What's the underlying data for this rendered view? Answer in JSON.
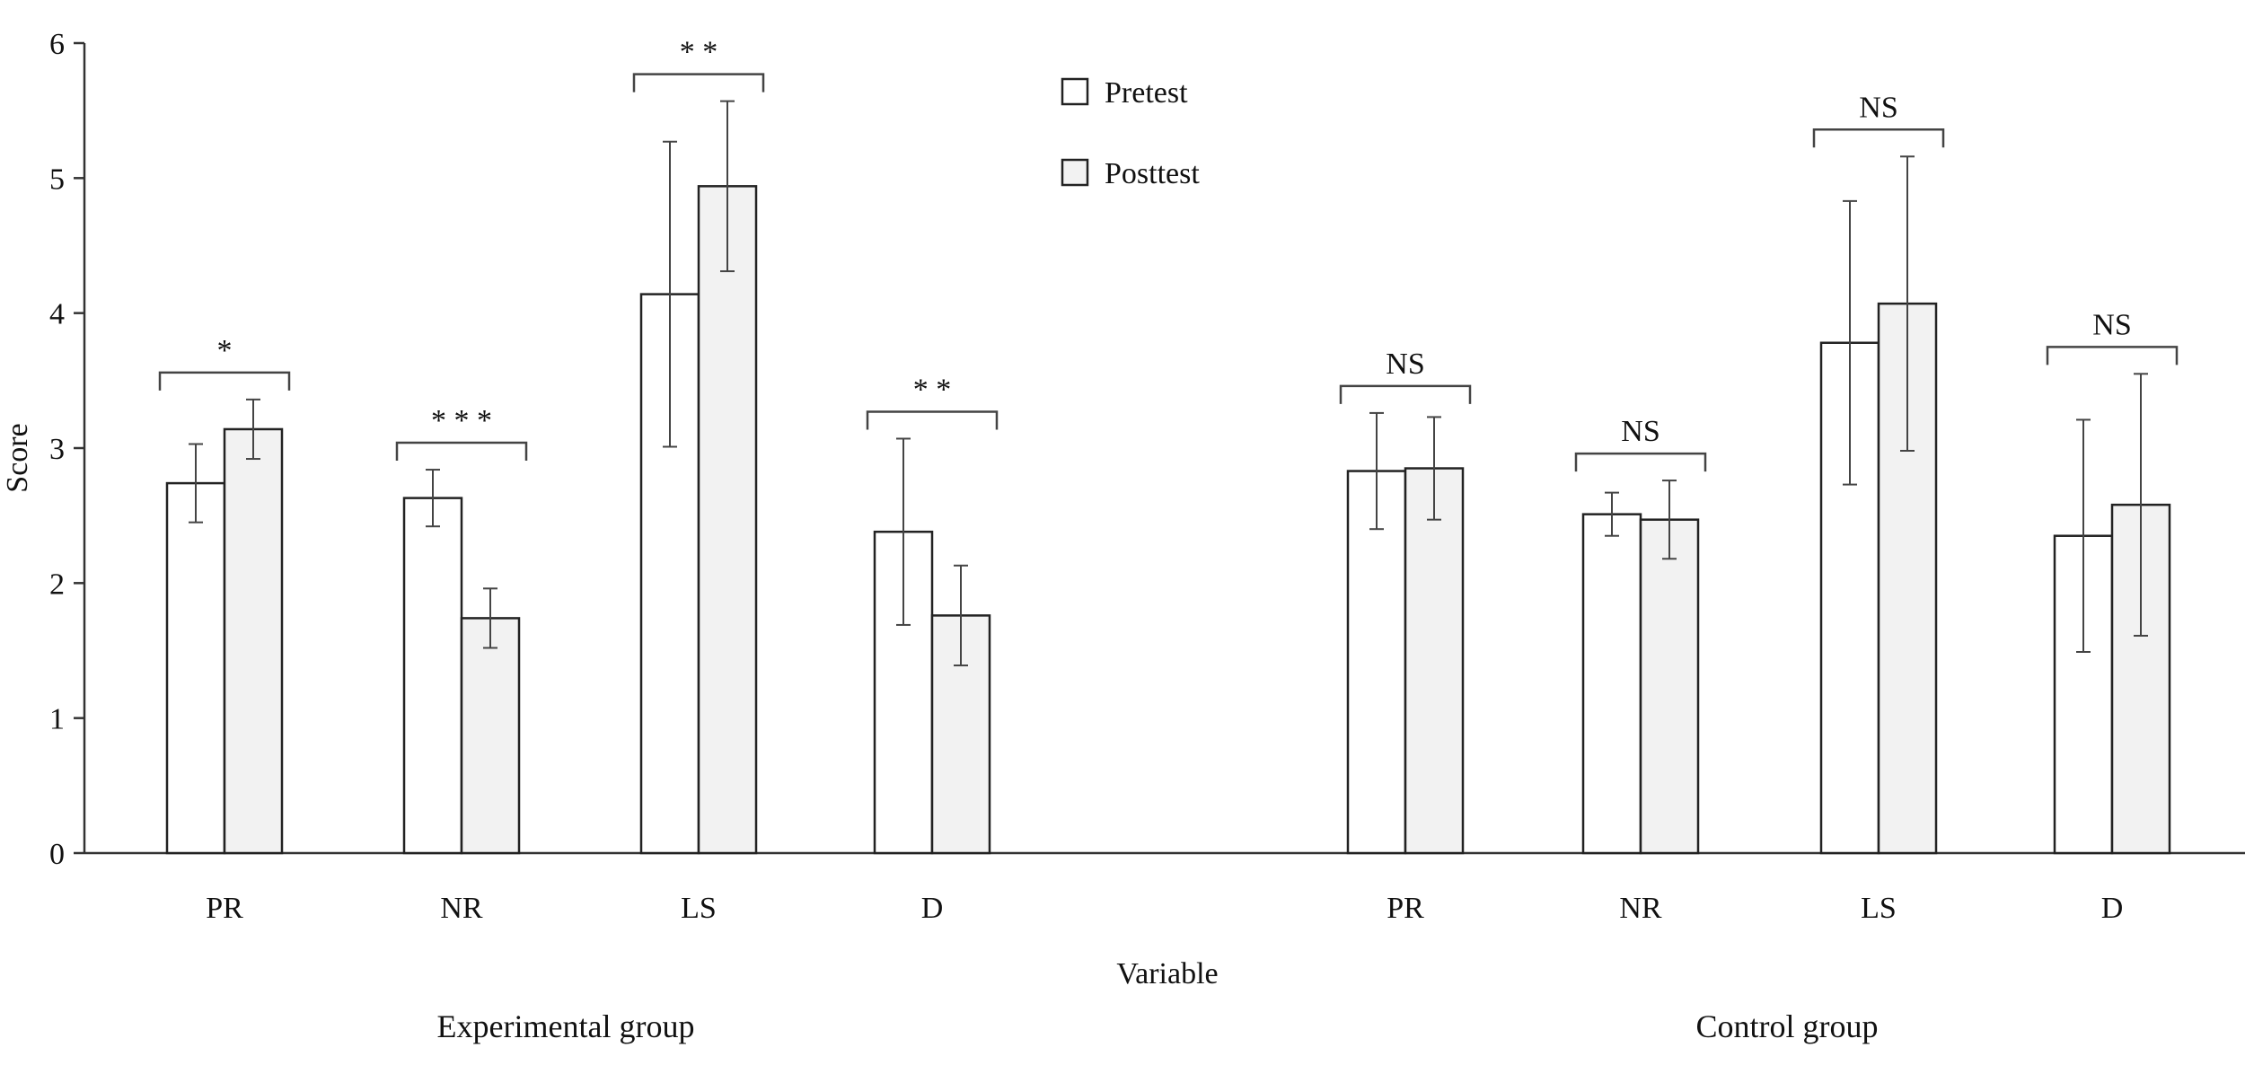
{
  "chart_data": {
    "type": "bar",
    "xlabel": "Variable",
    "ylabel": "Score",
    "ylim": [
      0,
      6
    ],
    "yticks": [
      0,
      1,
      2,
      3,
      4,
      5,
      6
    ],
    "grid": false,
    "legend_position": "top-center",
    "series_colors": {
      "Pretest": "#ffffff",
      "Posttest": "#f2f2f2"
    },
    "series": [
      {
        "name": "Pretest"
      },
      {
        "name": "Posttest"
      }
    ],
    "groups": [
      {
        "label": "Experimental group",
        "categories": [
          {
            "name": "PR",
            "pretest": 2.74,
            "pretest_err": 0.29,
            "posttest": 3.14,
            "posttest_err": 0.22,
            "significance": "*"
          },
          {
            "name": "NR",
            "pretest": 2.63,
            "pretest_err": 0.21,
            "posttest": 1.74,
            "posttest_err": 0.22,
            "significance": "* * *"
          },
          {
            "name": "LS",
            "pretest": 4.14,
            "pretest_err": 1.13,
            "posttest": 4.94,
            "posttest_err": 0.63,
            "significance": "* *"
          },
          {
            "name": "D",
            "pretest": 2.38,
            "pretest_err": 0.69,
            "posttest": 1.76,
            "posttest_err": 0.37,
            "significance": "* *"
          }
        ]
      },
      {
        "label": "Control group",
        "categories": [
          {
            "name": "PR",
            "pretest": 2.83,
            "pretest_err": 0.43,
            "posttest": 2.85,
            "posttest_err": 0.38,
            "significance": "NS"
          },
          {
            "name": "NR",
            "pretest": 2.51,
            "pretest_err": 0.16,
            "posttest": 2.47,
            "posttest_err": 0.29,
            "significance": "NS"
          },
          {
            "name": "LS",
            "pretest": 3.78,
            "pretest_err": 1.05,
            "posttest": 4.07,
            "posttest_err": 1.09,
            "significance": "NS"
          },
          {
            "name": "D",
            "pretest": 2.35,
            "pretest_err": 0.86,
            "posttest": 2.58,
            "posttest_err": 0.97,
            "significance": "NS"
          }
        ]
      }
    ]
  }
}
